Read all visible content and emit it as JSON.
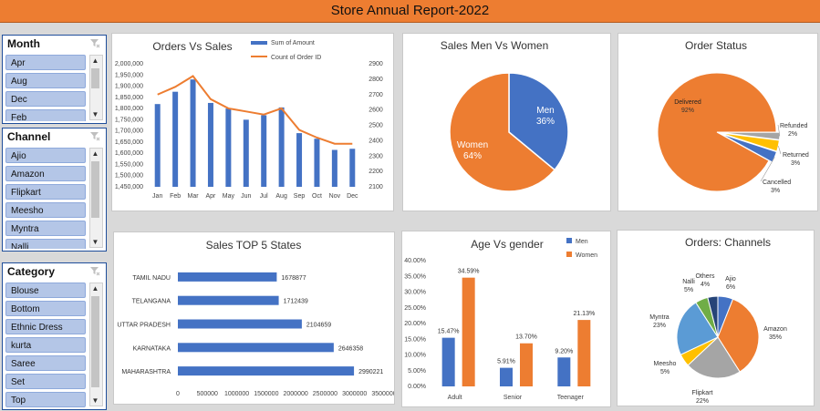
{
  "report_title": "Store Annual Report-2022",
  "slicers": {
    "month": {
      "title": "Month",
      "items": [
        "Apr",
        "Aug",
        "Dec",
        "Feb"
      ]
    },
    "channel": {
      "title": "Channel",
      "items": [
        "Ajio",
        "Amazon",
        "Flipkart",
        "Meesho",
        "Myntra",
        "Nalli"
      ]
    },
    "category": {
      "title": "Category",
      "items": [
        "Blouse",
        "Bottom",
        "Ethnic Dress",
        "kurta",
        "Saree",
        "Set",
        "Top"
      ]
    }
  },
  "colors": {
    "blue": "#4472c4",
    "orange": "#ed7d31",
    "gray": "#a5a5a5",
    "yellow": "#ffc000",
    "lightblue": "#5b9bd5",
    "green": "#70ad47",
    "navy": "#264478"
  },
  "chart_data": [
    {
      "type": "bar",
      "title": "Orders Vs Sales",
      "categories": [
        "Jan",
        "Feb",
        "Mar",
        "Apr",
        "May",
        "Jun",
        "Jul",
        "Aug",
        "Sep",
        "Oct",
        "Nov",
        "Dec"
      ],
      "series": [
        {
          "name": "Sum of Amount",
          "type": "bar",
          "axis": "left",
          "values": [
            1820000,
            1875000,
            1930000,
            1825000,
            1800000,
            1750000,
            1770000,
            1805000,
            1690000,
            1665000,
            1615000,
            1620000
          ]
        },
        {
          "name": "Count of Order ID",
          "type": "line",
          "axis": "right",
          "values": [
            2700,
            2750,
            2820,
            2670,
            2610,
            2590,
            2570,
            2610,
            2470,
            2420,
            2380,
            2380
          ]
        }
      ],
      "ylim_left": [
        1450000,
        2000000
      ],
      "ylim_right": [
        2100,
        2900
      ],
      "left_ticks": [
        "1,450,000",
        "1,500,000",
        "1,550,000",
        "1,600,000",
        "1,650,000",
        "1,700,000",
        "1,750,000",
        "1,800,000",
        "1,850,000",
        "1,900,000",
        "1,950,000",
        "2,000,000"
      ],
      "right_ticks": [
        "2100",
        "2200",
        "2300",
        "2400",
        "2500",
        "2600",
        "2700",
        "2800",
        "2900"
      ],
      "legend": "top"
    },
    {
      "type": "pie",
      "title": "Sales Men Vs Women",
      "slices": [
        {
          "label": "Men",
          "value": 36,
          "text": "36%"
        },
        {
          "label": "Women",
          "value": 64,
          "text": "64%"
        }
      ]
    },
    {
      "type": "pie",
      "title": "Order Status",
      "slices": [
        {
          "label": "Delivered",
          "value": 92,
          "text": "92%"
        },
        {
          "label": "Refunded",
          "value": 2,
          "text": "2%"
        },
        {
          "label": "Returned",
          "value": 3,
          "text": "3%"
        },
        {
          "label": "Cancelled",
          "value": 3,
          "text": "3%"
        }
      ]
    },
    {
      "type": "bar",
      "orientation": "horizontal",
      "title": "Sales TOP 5 States",
      "categories": [
        "TAMIL NADU",
        "TELANGANA",
        "UTTAR PRADESH",
        "KARNATAKA",
        "MAHARASHTRA"
      ],
      "values": [
        1678877,
        1712439,
        2104659,
        2646358,
        2990221
      ],
      "xlim": [
        0,
        3500000
      ],
      "x_ticks": [
        "0",
        "500000",
        "1000000",
        "1500000",
        "2000000",
        "2500000",
        "3000000",
        "3500000"
      ]
    },
    {
      "type": "bar",
      "title": "Age Vs gender",
      "categories": [
        "Adult",
        "Senior",
        "Teenager"
      ],
      "series": [
        {
          "name": "Men",
          "values": [
            15.47,
            5.91,
            9.2
          ],
          "labels": [
            "15.47%",
            "5.91%",
            "9.20%"
          ]
        },
        {
          "name": "Women",
          "values": [
            34.59,
            13.7,
            21.13
          ],
          "labels": [
            "34.59%",
            "13.70%",
            "21.13%"
          ]
        }
      ],
      "ylim": [
        0,
        40
      ],
      "y_ticks": [
        "0.00%",
        "5.00%",
        "10.00%",
        "15.00%",
        "20.00%",
        "25.00%",
        "30.00%",
        "35.00%",
        "40.00%"
      ],
      "legend": "top-right"
    },
    {
      "type": "pie",
      "title": "Orders: Channels",
      "slices": [
        {
          "label": "Ajio",
          "value": 6,
          "text": "6%"
        },
        {
          "label": "Amazon",
          "value": 35,
          "text": "35%"
        },
        {
          "label": "Flipkart",
          "value": 22,
          "text": "22%"
        },
        {
          "label": "Meesho",
          "value": 5,
          "text": "5%"
        },
        {
          "label": "Myntra",
          "value": 23,
          "text": "23%"
        },
        {
          "label": "Nalli",
          "value": 5,
          "text": "5%"
        },
        {
          "label": "Others",
          "value": 4,
          "text": "4%"
        }
      ]
    }
  ]
}
